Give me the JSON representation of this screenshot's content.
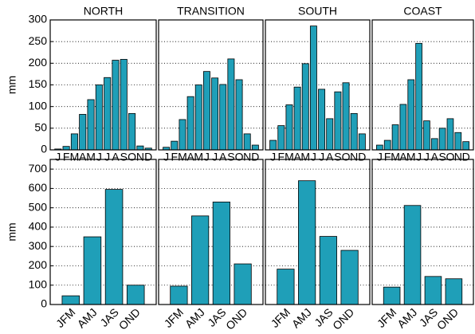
{
  "chart_data": [
    {
      "type": "bar",
      "title": "NORTH",
      "ylabel": "mm",
      "categories": [
        "J",
        "F",
        "M",
        "A",
        "M",
        "J",
        "J",
        "A",
        "S",
        "O",
        "N",
        "D"
      ],
      "values": [
        2,
        8,
        37,
        82,
        116,
        150,
        167,
        207,
        209,
        84,
        9,
        4
      ],
      "color": "#1f9fb8",
      "ylim": [
        0,
        300
      ],
      "yticks": [
        0,
        50,
        100,
        150,
        200,
        250,
        300
      ],
      "grid": true
    },
    {
      "type": "bar",
      "title": "TRANSITION",
      "categories": [
        "J",
        "F",
        "M",
        "A",
        "M",
        "J",
        "J",
        "A",
        "S",
        "O",
        "N",
        "D"
      ],
      "values": [
        6,
        20,
        70,
        123,
        150,
        181,
        166,
        151,
        210,
        162,
        37,
        11
      ],
      "color": "#1f9fb8",
      "ylim": [
        0,
        300
      ],
      "yticks": [
        0,
        50,
        100,
        150,
        200,
        250,
        300
      ],
      "grid": true
    },
    {
      "type": "bar",
      "title": "SOUTH",
      "categories": [
        "J",
        "F",
        "M",
        "A",
        "M",
        "J",
        "J",
        "A",
        "S",
        "O",
        "N",
        "D"
      ],
      "values": [
        22,
        56,
        104,
        145,
        199,
        286,
        140,
        72,
        134,
        155,
        84,
        37
      ],
      "color": "#1f9fb8",
      "ylim": [
        0,
        300
      ],
      "yticks": [
        0,
        50,
        100,
        150,
        200,
        250,
        300
      ],
      "grid": true
    },
    {
      "type": "bar",
      "title": "COAST",
      "categories": [
        "J",
        "F",
        "M",
        "A",
        "M",
        "J",
        "J",
        "A",
        "S",
        "O",
        "N",
        "D"
      ],
      "values": [
        11,
        22,
        58,
        105,
        162,
        246,
        67,
        26,
        50,
        72,
        40,
        19
      ],
      "color": "#1f9fb8",
      "ylim": [
        0,
        300
      ],
      "yticks": [
        0,
        50,
        100,
        150,
        200,
        250,
        300
      ],
      "grid": true
    },
    {
      "type": "bar",
      "ylabel": "mm",
      "categories": [
        "JFM",
        "AMJ",
        "JAS",
        "OND"
      ],
      "values": [
        45,
        350,
        595,
        100
      ],
      "color": "#1f9fb8",
      "ylim": [
        0,
        750
      ],
      "yticks": [
        0,
        100,
        200,
        300,
        400,
        500,
        600,
        700
      ],
      "grid": true
    },
    {
      "type": "bar",
      "categories": [
        "JFM",
        "AMJ",
        "JAS",
        "OND"
      ],
      "values": [
        95,
        458,
        530,
        210
      ],
      "color": "#1f9fb8",
      "ylim": [
        0,
        750
      ],
      "yticks": [
        0,
        100,
        200,
        300,
        400,
        500,
        600,
        700
      ],
      "grid": true
    },
    {
      "type": "bar",
      "categories": [
        "JFM",
        "AMJ",
        "JAS",
        "OND"
      ],
      "values": [
        183,
        640,
        352,
        280
      ],
      "color": "#1f9fb8",
      "ylim": [
        0,
        750
      ],
      "yticks": [
        0,
        100,
        200,
        300,
        400,
        500,
        600,
        700
      ],
      "grid": true
    },
    {
      "type": "bar",
      "categories": [
        "JFM",
        "AMJ",
        "JAS",
        "OND"
      ],
      "values": [
        90,
        512,
        145,
        133
      ],
      "color": "#1f9fb8",
      "ylim": [
        0,
        750
      ],
      "yticks": [
        0,
        100,
        200,
        300,
        400,
        500,
        600,
        700
      ],
      "grid": true
    }
  ]
}
